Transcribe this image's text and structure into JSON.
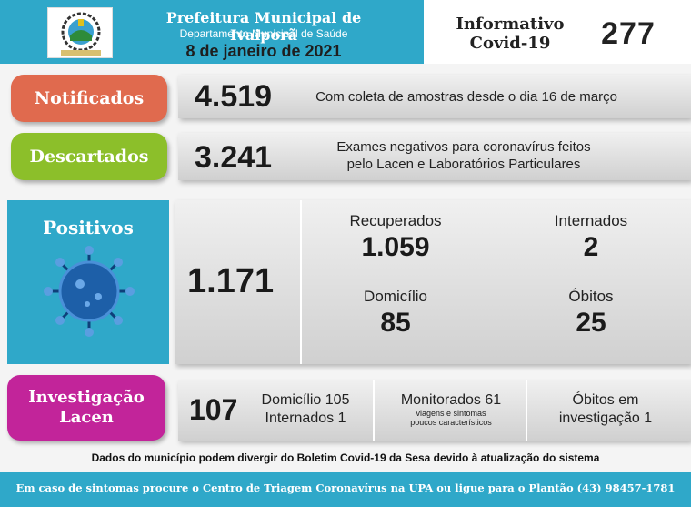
{
  "header": {
    "title": "Prefeitura Municipal de Ivaiporã",
    "subtitle": "Departamento Municipal de Saúde",
    "date": "8 de janeiro de 2021",
    "info_line1": "Informativo",
    "info_line2": "Covid-19",
    "bulletin_number": "277"
  },
  "notificados": {
    "label": "Notificados",
    "value": "4.519",
    "description": "Com coleta de amostras desde o dia 16 de março",
    "color": "#e06a4e"
  },
  "descartados": {
    "label": "Descartados",
    "value": "3.241",
    "description_line1": "Exames negativos para coronavírus feitos",
    "description_line2": "pelo Lacen e Laboratórios Particulares",
    "color": "#8cbf2a"
  },
  "positivos": {
    "label": "Positivos",
    "value": "1.171",
    "recuperados_label": "Recuperados",
    "recuperados_value": "1.059",
    "internados_label": "Internados",
    "internados_value": "2",
    "domicilio_label": "Domicílio",
    "domicilio_value": "85",
    "obitos_label": "Óbitos",
    "obitos_value": "25",
    "color": "#2fa8c9"
  },
  "investigacao": {
    "label_line1": "Investigação",
    "label_line2": "Lacen",
    "value": "107",
    "domicilio": "Domicílio 105",
    "internados": "Internados 1",
    "monitorados": "Monitorados 61",
    "monitorados_note_line1": "viagens e sintomas",
    "monitorados_note_line2": "poucos característicos",
    "obitos_line1": "Óbitos em",
    "obitos_line2": "investigação 1",
    "color": "#c2249a"
  },
  "footer": {
    "note": "Dados do município podem divergir do Boletim Covid-19 da Sesa devido à atualização do sistema",
    "contact": "Em caso de sintomas procure o Centro de Triagem Coronavírus na UPA ou ligue para o Plantão (43) 98457-1781"
  }
}
